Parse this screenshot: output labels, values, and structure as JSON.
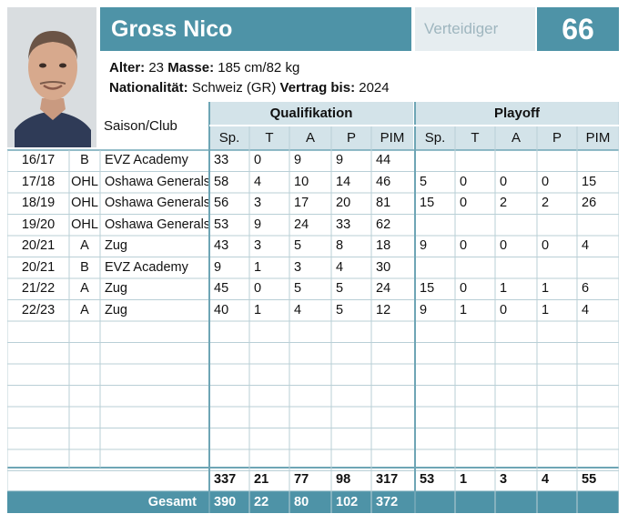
{
  "player": {
    "name": "Gross Nico",
    "position": "Verteidiger",
    "number": "66",
    "age_label": "Alter:",
    "age": "23",
    "size_label": "Masse:",
    "size": "185 cm/82 kg",
    "nationality_label": "Nationalität:",
    "nationality": "Schweiz (GR)",
    "contract_label": "Vertrag bis:",
    "contract": "2024"
  },
  "colors": {
    "accent": "#4e93a7",
    "header_bg": "#d3e3e9",
    "position_bg": "#e6edf0"
  },
  "table": {
    "saison_club_header": "Saison/Club",
    "qualifikation_header": "Qualifikation",
    "playoff_header": "Playoff",
    "qual_cols": [
      "Sp.",
      "T",
      "A",
      "P",
      "PIM"
    ],
    "playoff_cols": [
      "Sp.",
      "T",
      "A",
      "P",
      "PIM"
    ],
    "rows": [
      {
        "season": "16/17",
        "league": "B",
        "club": "EVZ Academy",
        "q": [
          "33",
          "0",
          "9",
          "9",
          "44"
        ],
        "p": [
          "",
          "",
          "",
          "",
          ""
        ]
      },
      {
        "season": "17/18",
        "league": "OHL",
        "club": "Oshawa Generals",
        "q": [
          "58",
          "4",
          "10",
          "14",
          "46"
        ],
        "p": [
          "5",
          "0",
          "0",
          "0",
          "15"
        ]
      },
      {
        "season": "18/19",
        "league": "OHL",
        "club": "Oshawa Generals",
        "q": [
          "56",
          "3",
          "17",
          "20",
          "81"
        ],
        "p": [
          "15",
          "0",
          "2",
          "2",
          "26"
        ]
      },
      {
        "season": "19/20",
        "league": "OHL",
        "club": "Oshawa Generals",
        "q": [
          "53",
          "9",
          "24",
          "33",
          "62"
        ],
        "p": [
          "",
          "",
          "",
          "",
          ""
        ]
      },
      {
        "season": "20/21",
        "league": "A",
        "club": "Zug",
        "q": [
          "43",
          "3",
          "5",
          "8",
          "18"
        ],
        "p": [
          "9",
          "0",
          "0",
          "0",
          "4"
        ]
      },
      {
        "season": "20/21",
        "league": "B",
        "club": "EVZ Academy",
        "q": [
          "9",
          "1",
          "3",
          "4",
          "30"
        ],
        "p": [
          "",
          "",
          "",
          "",
          ""
        ]
      },
      {
        "season": "21/22",
        "league": "A",
        "club": "Zug",
        "q": [
          "45",
          "0",
          "5",
          "5",
          "24"
        ],
        "p": [
          "15",
          "0",
          "1",
          "1",
          "6"
        ]
      },
      {
        "season": "22/23",
        "league": "A",
        "club": "Zug",
        "q": [
          "40",
          "1",
          "4",
          "5",
          "12"
        ],
        "p": [
          "9",
          "1",
          "0",
          "1",
          "4"
        ]
      }
    ],
    "empty_rows": 7,
    "totals": {
      "q": [
        "337",
        "21",
        "77",
        "98",
        "317"
      ],
      "p": [
        "53",
        "1",
        "3",
        "4",
        "55"
      ]
    },
    "gesamt_label": "Gesamt",
    "gesamt": [
      "390",
      "22",
      "80",
      "102",
      "372"
    ]
  }
}
